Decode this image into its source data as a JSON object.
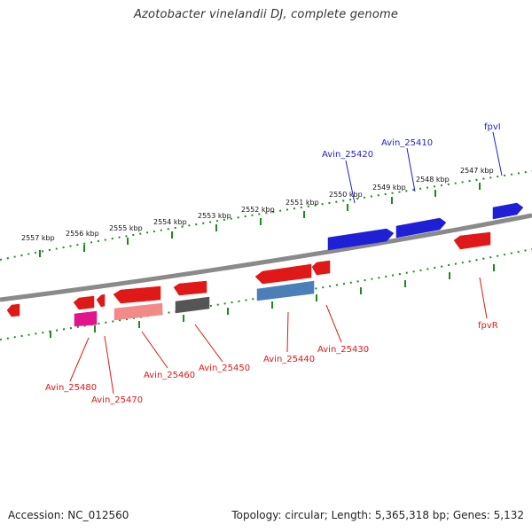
{
  "title": "Azotobacter vinelandii DJ, complete genome",
  "footer": {
    "accession": "Accession: NC_012560",
    "topology": "Topology: circular; Length: 5,365,318 bp; Genes: 5,132"
  },
  "colors": {
    "backbone": "#8a8a8a",
    "ticks": "#1e8a1e",
    "forward_gene": "#1f1fd6",
    "reverse_gene": "#e01818",
    "pseudo_gene": "#e0148c",
    "rna_gene": "#f28a8a",
    "gray_gene": "#555555",
    "steel_gene": "#4a7fb8"
  },
  "axis": {
    "tick_labels": [
      "2557 kbp",
      "2556 kbp",
      "2555 kbp",
      "2554 kbp",
      "2553 kbp",
      "2552 kbp",
      "2551 kbp",
      "2550 kbp",
      "2549 kbp",
      "2548 kbp",
      "2547 kbp"
    ]
  },
  "forward_labels": [
    "Avin_25420",
    "Avin_25410",
    "fpvI"
  ],
  "reverse_labels": [
    "Avin_25480",
    "Avin_25470",
    "Avin_25460",
    "Avin_25450",
    "Avin_25440",
    "Avin_25430",
    "fpvR"
  ]
}
